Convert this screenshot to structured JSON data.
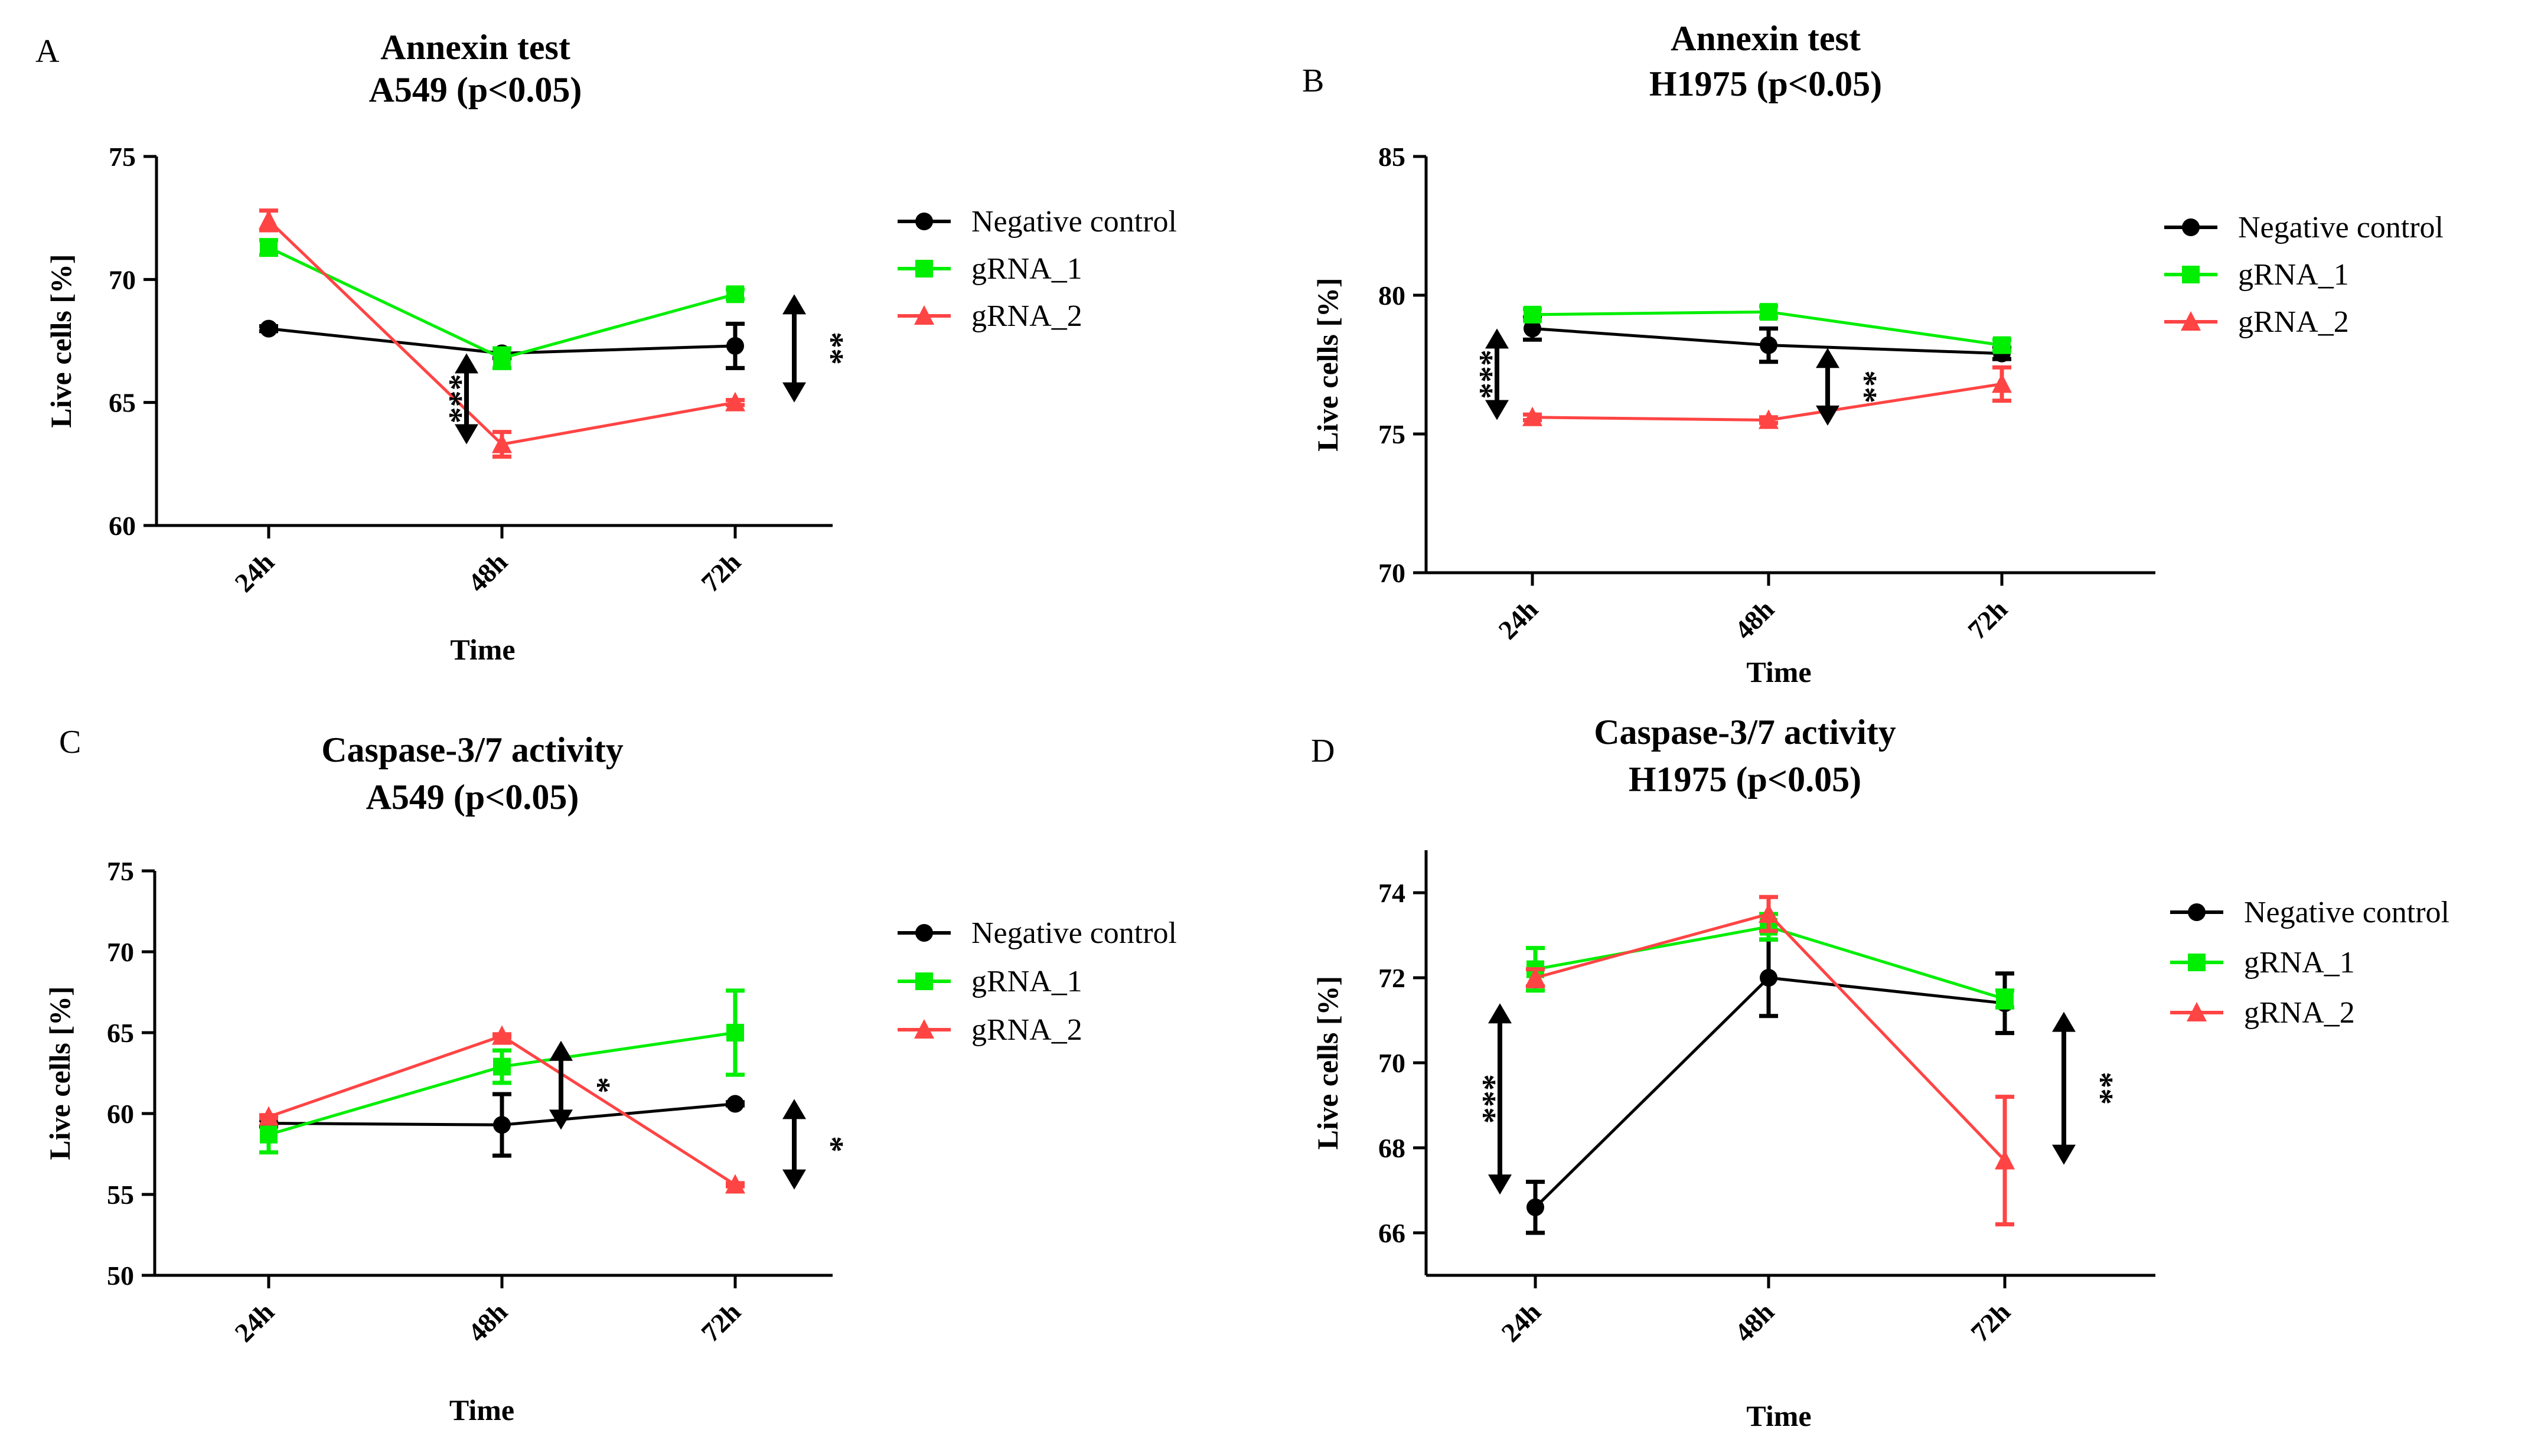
{
  "series_style": [
    {
      "name": "Negative control",
      "color": "#000000",
      "marker": "circle"
    },
    {
      "name": "gRNA_1",
      "color": "#00ee00",
      "marker": "square"
    },
    {
      "name": "gRNA_2",
      "color": "#ff4444",
      "marker": "triangle"
    }
  ],
  "chart_data": [
    {
      "panel": "A",
      "type": "line",
      "title": [
        "Annexin test",
        "A549 (p<0.05)"
      ],
      "xlabel": "Time",
      "ylabel": "Live cells [%]",
      "categories": [
        "24h",
        "48h",
        "72h"
      ],
      "ylim": [
        60,
        75
      ],
      "yticks": [
        60,
        65,
        70,
        75
      ],
      "legend_position": "right",
      "series": [
        {
          "name": "Negative control",
          "values": [
            68.0,
            67.0,
            67.3
          ],
          "errors": [
            0.1,
            0.2,
            0.9
          ]
        },
        {
          "name": "gRNA_1",
          "values": [
            71.3,
            66.8,
            69.4
          ],
          "errors": [
            0.3,
            0.4,
            0.2
          ]
        },
        {
          "name": "gRNA_2",
          "values": [
            72.4,
            63.3,
            65.0
          ],
          "errors": [
            0.4,
            0.5,
            0.1
          ]
        }
      ],
      "annotations": [
        {
          "label": "***",
          "category": 1,
          "from": 67.0,
          "to": 63.3
        },
        {
          "label": "**",
          "category": 2,
          "from": 69.4,
          "to": 65.0
        }
      ]
    },
    {
      "panel": "B",
      "type": "line",
      "title": [
        "Annexin test",
        "H1975 (p<0.05)"
      ],
      "xlabel": "Time",
      "ylabel": "Live cells [%]",
      "categories": [
        "24h",
        "48h",
        "72h"
      ],
      "ylim": [
        70,
        85
      ],
      "yticks": [
        70,
        75,
        80,
        85
      ],
      "legend_position": "right",
      "series": [
        {
          "name": "Negative control",
          "values": [
            78.8,
            78.2,
            77.9
          ],
          "errors": [
            0.4,
            0.6,
            0.2
          ]
        },
        {
          "name": "gRNA_1",
          "values": [
            79.3,
            79.4,
            78.2
          ],
          "errors": [
            0.2,
            0.2,
            0.2
          ]
        },
        {
          "name": "gRNA_2",
          "values": [
            75.6,
            75.5,
            76.8
          ],
          "errors": [
            0.1,
            0.1,
            0.6
          ]
        }
      ],
      "annotations": [
        {
          "label": "***",
          "category": 0,
          "from": 78.8,
          "to": 75.5
        },
        {
          "label": "**",
          "category": 1,
          "from": 78.1,
          "to": 75.3
        }
      ]
    },
    {
      "panel": "C",
      "type": "line",
      "title": [
        "Caspase-3/7 activity",
        "A549 (p<0.05)"
      ],
      "xlabel": "Time",
      "ylabel": "Live cells [%]",
      "categories": [
        "24h",
        "48h",
        "72h"
      ],
      "ylim": [
        50,
        75
      ],
      "yticks": [
        50,
        55,
        60,
        65,
        70,
        75
      ],
      "legend_position": "right",
      "series": [
        {
          "name": "Negative control",
          "values": [
            59.4,
            59.3,
            60.6
          ],
          "errors": [
            0.2,
            1.9,
            0.1
          ]
        },
        {
          "name": "gRNA_1",
          "values": [
            58.7,
            62.9,
            65.0
          ],
          "errors": [
            1.1,
            1.0,
            2.6
          ]
        },
        {
          "name": "gRNA_2",
          "values": [
            59.8,
            64.8,
            55.6
          ],
          "errors": [
            0.1,
            0.1,
            0.1
          ]
        }
      ],
      "annotations": [
        {
          "label": "*",
          "category": 1,
          "from": 64.5,
          "to": 59.0
        },
        {
          "label": "*",
          "category": 2,
          "from": 60.9,
          "to": 55.3
        }
      ]
    },
    {
      "panel": "D",
      "type": "line",
      "title": [
        "Caspase-3/7 activity",
        "H1975 (p<0.05)"
      ],
      "xlabel": "Time",
      "ylabel": "Live  cells [%]",
      "categories": [
        "24h",
        "48h",
        "72h"
      ],
      "ylim": [
        65,
        75
      ],
      "yticks": [
        66,
        68,
        70,
        72,
        74
      ],
      "legend_position": "right",
      "series": [
        {
          "name": "Negative control",
          "values": [
            66.6,
            72.0,
            71.4
          ],
          "errors": [
            0.6,
            0.9,
            0.7
          ]
        },
        {
          "name": "gRNA_1",
          "values": [
            72.2,
            73.2,
            71.5
          ],
          "errors": [
            0.5,
            0.3,
            0.2
          ]
        },
        {
          "name": "gRNA_2",
          "values": [
            72.0,
            73.5,
            67.7
          ],
          "errors": [
            0.2,
            0.4,
            1.5
          ]
        }
      ],
      "annotations": [
        {
          "label": "***",
          "category": 0,
          "from": 71.4,
          "to": 66.9
        },
        {
          "label": "**",
          "category": 2,
          "from": 71.2,
          "to": 67.6
        }
      ]
    }
  ]
}
